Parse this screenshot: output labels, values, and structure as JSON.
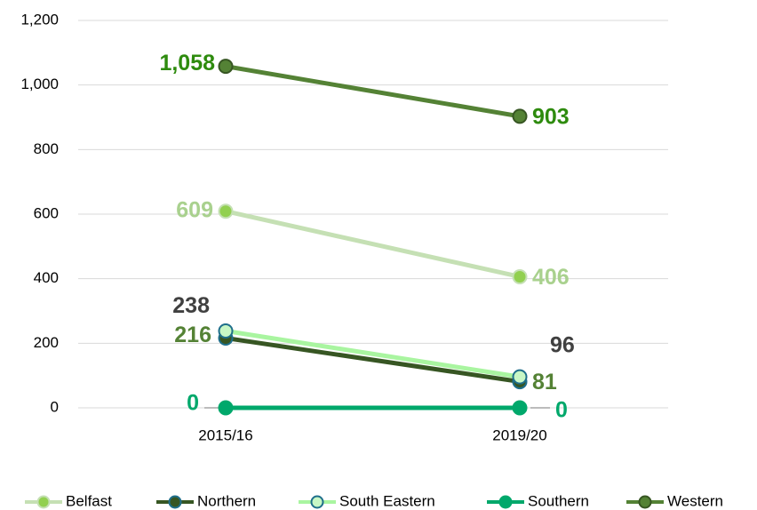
{
  "chart_data": {
    "type": "line",
    "categories": [
      "2015/16",
      "2019/20"
    ],
    "ylim": [
      0,
      1200
    ],
    "yticks": [
      0,
      200,
      400,
      600,
      800,
      {
        "value": 1000,
        "label": "1,000"
      },
      {
        "value": 1200,
        "label": "1,200"
      }
    ],
    "grid": true,
    "legend": "bottom",
    "series": [
      {
        "name": "Belfast",
        "color": "#c5e0b4",
        "marker_fill": "#92d050",
        "marker_stroke": "#c5e0b4",
        "label_color": "#a9d18e",
        "values": [
          609,
          406
        ]
      },
      {
        "name": "Northern",
        "color": "#375623",
        "marker_fill": "#375623",
        "marker_stroke": "#1f6f8b",
        "label_color": "#548235",
        "values": [
          216,
          81
        ]
      },
      {
        "name": "South Eastern",
        "color": "#a9f5a0",
        "marker_fill": "#c8f7c5",
        "marker_stroke": "#1f6f8b",
        "label_color": "#404040",
        "values": [
          238,
          96
        ]
      },
      {
        "name": "Southern",
        "color": "#00a86b",
        "marker_fill": "#00a86b",
        "marker_stroke": "#00a86b",
        "label_color": "#00a86b",
        "values": [
          0,
          0
        ]
      },
      {
        "name": "Western",
        "color": "#548235",
        "marker_fill": "#548235",
        "marker_stroke": "#375623",
        "label_color": "#2e8b0e",
        "values": [
          1058,
          903
        ],
        "value_labels": [
          "1,058",
          "903"
        ]
      }
    ]
  }
}
